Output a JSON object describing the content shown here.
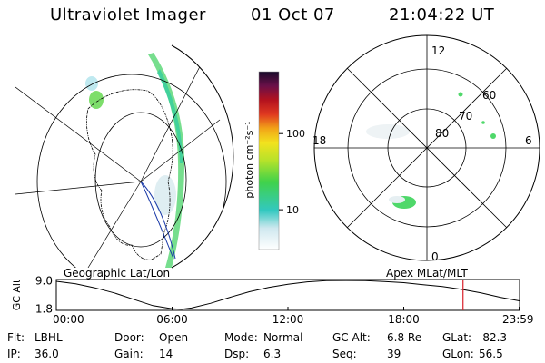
{
  "header": {
    "instrument": "Ultraviolet Imager",
    "date": "01 Oct 07",
    "time": "21:04:22 UT"
  },
  "left_panel": {
    "caption": "Geographic Lat/Lon"
  },
  "right_panel": {
    "caption": "Apex MLat/MLT",
    "mlt_labels": {
      "top": "12",
      "left": "18",
      "right": "6",
      "bottom": "0"
    },
    "lat_labels": [
      "60",
      "70",
      "80"
    ]
  },
  "colorbar": {
    "unit": "photon cm⁻²s⁻¹",
    "ticks": [
      "100",
      "10"
    ],
    "tick_values": [
      100,
      10
    ],
    "range": [
      3,
      650
    ],
    "scale": "log"
  },
  "altitude_plot": {
    "ylabel": "GC Alt",
    "yticks": [
      "9.0",
      "1.8"
    ],
    "ytick_values": [
      9.0,
      1.8
    ],
    "xticks": [
      "00:00",
      "06:00",
      "12:00",
      "18:00",
      "23:59"
    ],
    "xtick_values": [
      0,
      6,
      12,
      18,
      23.98
    ],
    "current_time_hours": 21.07,
    "current_time_color": "#d8202a",
    "curve_hours": [
      0,
      1,
      2,
      3,
      4,
      5,
      6,
      6.5,
      7,
      8,
      9,
      10,
      11,
      12,
      13,
      14,
      15,
      16,
      17,
      18,
      19,
      20,
      21,
      22,
      23,
      23.98
    ],
    "curve_alt_re": [
      8.85,
      8.2,
      7.2,
      5.9,
      4.3,
      2.7,
      1.9,
      1.8,
      2.1,
      3.3,
      4.8,
      6.2,
      7.3,
      8.1,
      8.7,
      9.0,
      9.05,
      9.0,
      8.8,
      8.5,
      8.0,
      7.5,
      6.8,
      5.9,
      4.8,
      3.9
    ]
  },
  "status": {
    "rows": [
      [
        {
          "label": "Flt:",
          "value": "LBHL"
        },
        {
          "label": "Door:",
          "value": "Open"
        },
        {
          "label": "Mode:",
          "value": "Normal"
        },
        {
          "label": "GC Alt:",
          "value": "6.8 Re"
        },
        {
          "label": "GLat:",
          "value": "-82.3"
        }
      ],
      [
        {
          "label": "IP:",
          "value": "36.0"
        },
        {
          "label": "Gain:",
          "value": "14"
        },
        {
          "label": "Dsp:",
          "value": "6.3"
        },
        {
          "label": "Seq:",
          "value": "39"
        },
        {
          "label": "GLon:",
          "value": "56.5"
        }
      ]
    ]
  }
}
